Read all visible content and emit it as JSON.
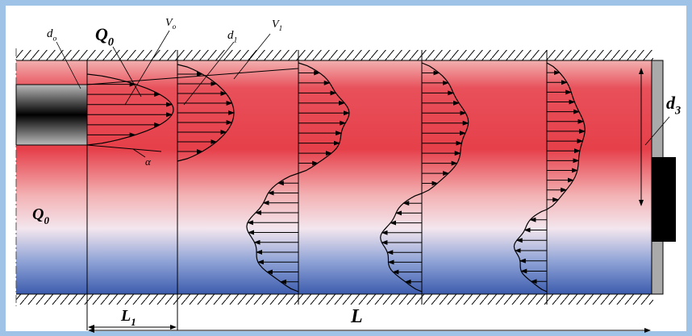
{
  "labels": [
    {
      "main": "d",
      "sub": "o"
    },
    {
      "main": "Q",
      "sub": "0"
    },
    {
      "main": "V",
      "sub": "o"
    },
    {
      "main": "d",
      "sub": "1"
    },
    {
      "main": "V",
      "sub": "1"
    },
    {
      "main": "d",
      "sub": "3"
    },
    {
      "main": "Q",
      "sub": "0"
    },
    {
      "main": "α"
    },
    {
      "main": "L",
      "sub": "1"
    },
    {
      "main": "L"
    }
  ]
}
